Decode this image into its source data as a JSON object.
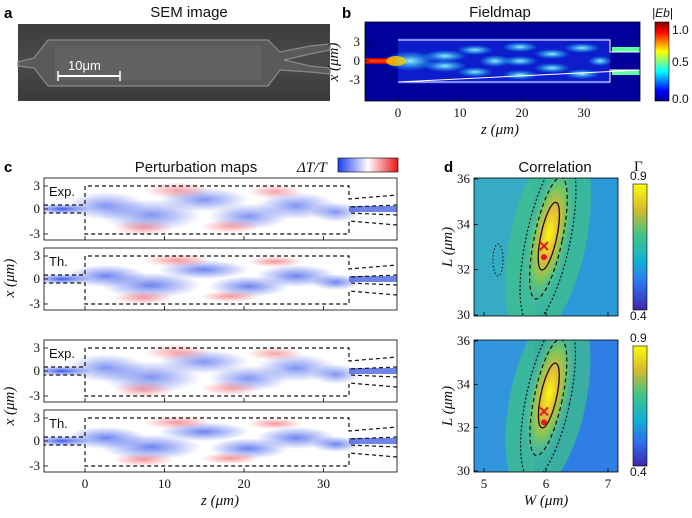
{
  "panel_a": {
    "label": "a",
    "title": "SEM image",
    "scale_bar": "10μm"
  },
  "panel_b": {
    "label": "b",
    "title": "Fieldmap",
    "xlabel": "z (μm)",
    "ylabel": "x (μm)",
    "xticks": [
      "0",
      "10",
      "20",
      "30"
    ],
    "yticks": [
      "3",
      "0",
      "-3"
    ],
    "colorbar_label": "|Eb|",
    "colorbar_ticks": [
      "1.0",
      "0.5",
      "0.0"
    ]
  },
  "panel_c": {
    "label": "c",
    "title": "Perturbation maps",
    "colorbar_label": "ΔT/T",
    "xlabel": "z (μm)",
    "ylabel": "x (μm)",
    "xticks": [
      "0",
      "10",
      "20",
      "30"
    ],
    "yticks": [
      "3",
      "0",
      "-3"
    ],
    "subplots": [
      "Exp.",
      "Th.",
      "Exp.",
      "Th."
    ]
  },
  "panel_d": {
    "label": "d",
    "title": "Correlation",
    "colorbar_label": "Γ",
    "xlabel": "W (μm)",
    "ylabel": "L (μm)",
    "xticks": [
      "5",
      "6",
      "7"
    ],
    "yticks": [
      "36",
      "34",
      "32",
      "30"
    ],
    "colorbar_ticks": [
      "0.9",
      "0.4"
    ]
  },
  "colors": {
    "jet_low": "#00008f",
    "jet_high": "#800000",
    "parula_low": "#3e26a8",
    "parula_high": "#f9fb0e",
    "marker": "#e31a1c"
  }
}
